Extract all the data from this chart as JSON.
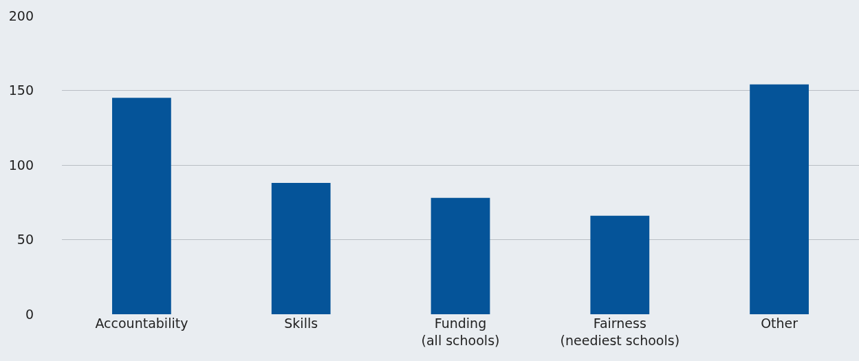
{
  "chart_data": {
    "type": "bar",
    "categories": [
      "Accountability",
      "Skills",
      "Funding\n(all schools)",
      "Fairness\n(neediest schools)",
      "Other"
    ],
    "values": [
      145,
      88,
      78,
      66,
      154
    ],
    "color": "#055499",
    "ylim": [
      0,
      200
    ],
    "yticks": [
      0,
      50,
      100,
      150,
      200
    ],
    "grid": "y",
    "legend": false
  }
}
